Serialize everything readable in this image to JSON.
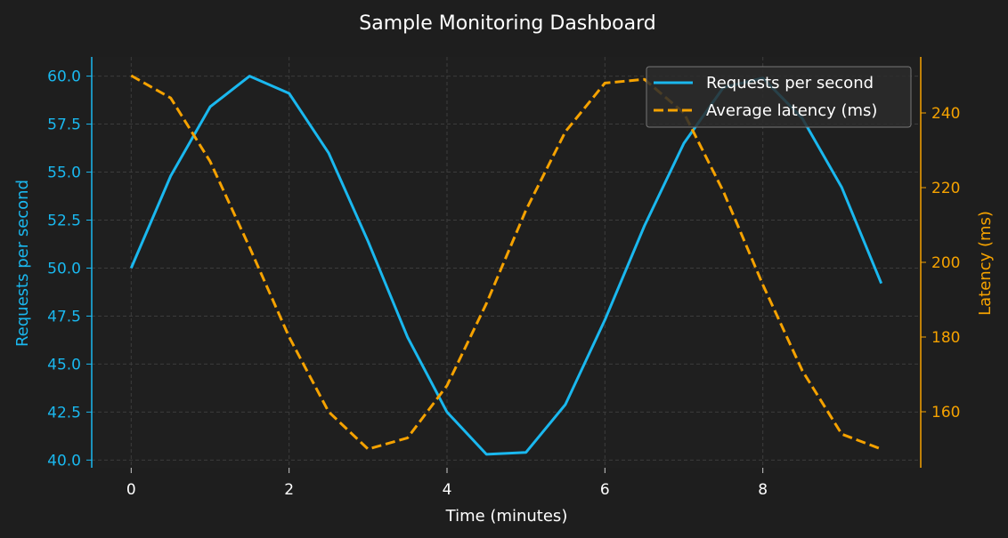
{
  "chart_data": {
    "type": "line",
    "title": "Sample Monitoring Dashboard",
    "xlabel": "Time (minutes)",
    "ylabel_left": "Requests per second",
    "ylabel_right": "Latency (ms)",
    "xlim": [
      -0.5,
      10
    ],
    "ylim_left": [
      39.6,
      61.0
    ],
    "ylim_right": [
      145,
      255
    ],
    "x_ticks": [
      "0",
      "2",
      "4",
      "6",
      "8"
    ],
    "x_tick_values": [
      0,
      2,
      4,
      6,
      8
    ],
    "y_left_ticks": [
      "40.0",
      "42.5",
      "45.0",
      "47.5",
      "50.0",
      "52.5",
      "55.0",
      "57.5",
      "60.0"
    ],
    "y_left_tick_values": [
      40.0,
      42.5,
      45.0,
      47.5,
      50.0,
      52.5,
      55.0,
      57.5,
      60.0
    ],
    "y_right_ticks": [
      "160",
      "180",
      "200",
      "220",
      "240"
    ],
    "y_right_tick_values": [
      160,
      180,
      200,
      220,
      240
    ],
    "grid": true,
    "legend_position": "top-right",
    "x": [
      0,
      0.5,
      1,
      1.5,
      2,
      2.5,
      3,
      3.5,
      4,
      4.5,
      5,
      5.5,
      6,
      6.5,
      7,
      7.5,
      8,
      8.5,
      9,
      9.5
    ],
    "series": [
      {
        "name": "Requests per second",
        "axis": "left",
        "style": "solid",
        "color": "#1ab8ef",
        "values": [
          50.0,
          54.8,
          58.4,
          60.0,
          59.1,
          56.0,
          51.4,
          46.4,
          42.5,
          40.3,
          40.4,
          42.9,
          47.3,
          52.2,
          56.5,
          59.4,
          59.9,
          57.8,
          54.2,
          49.2
        ]
      },
      {
        "name": "Average latency (ms)",
        "axis": "right",
        "style": "dashed",
        "color": "#f5a200",
        "values": [
          250,
          244,
          227,
          204,
          180,
          160,
          150,
          153,
          167,
          189,
          214,
          235,
          248,
          249,
          240,
          219,
          194,
          171,
          154,
          150
        ]
      }
    ]
  },
  "colors": {
    "background": "#1e1e1e",
    "plot_background": "#1f1f1f",
    "grid": "#3c3c3c",
    "text": "#ffffff",
    "left_axis": "#1ab8ef",
    "right_axis": "#f5a200",
    "legend_bg": "#2b2b2b",
    "legend_border": "#777777"
  }
}
